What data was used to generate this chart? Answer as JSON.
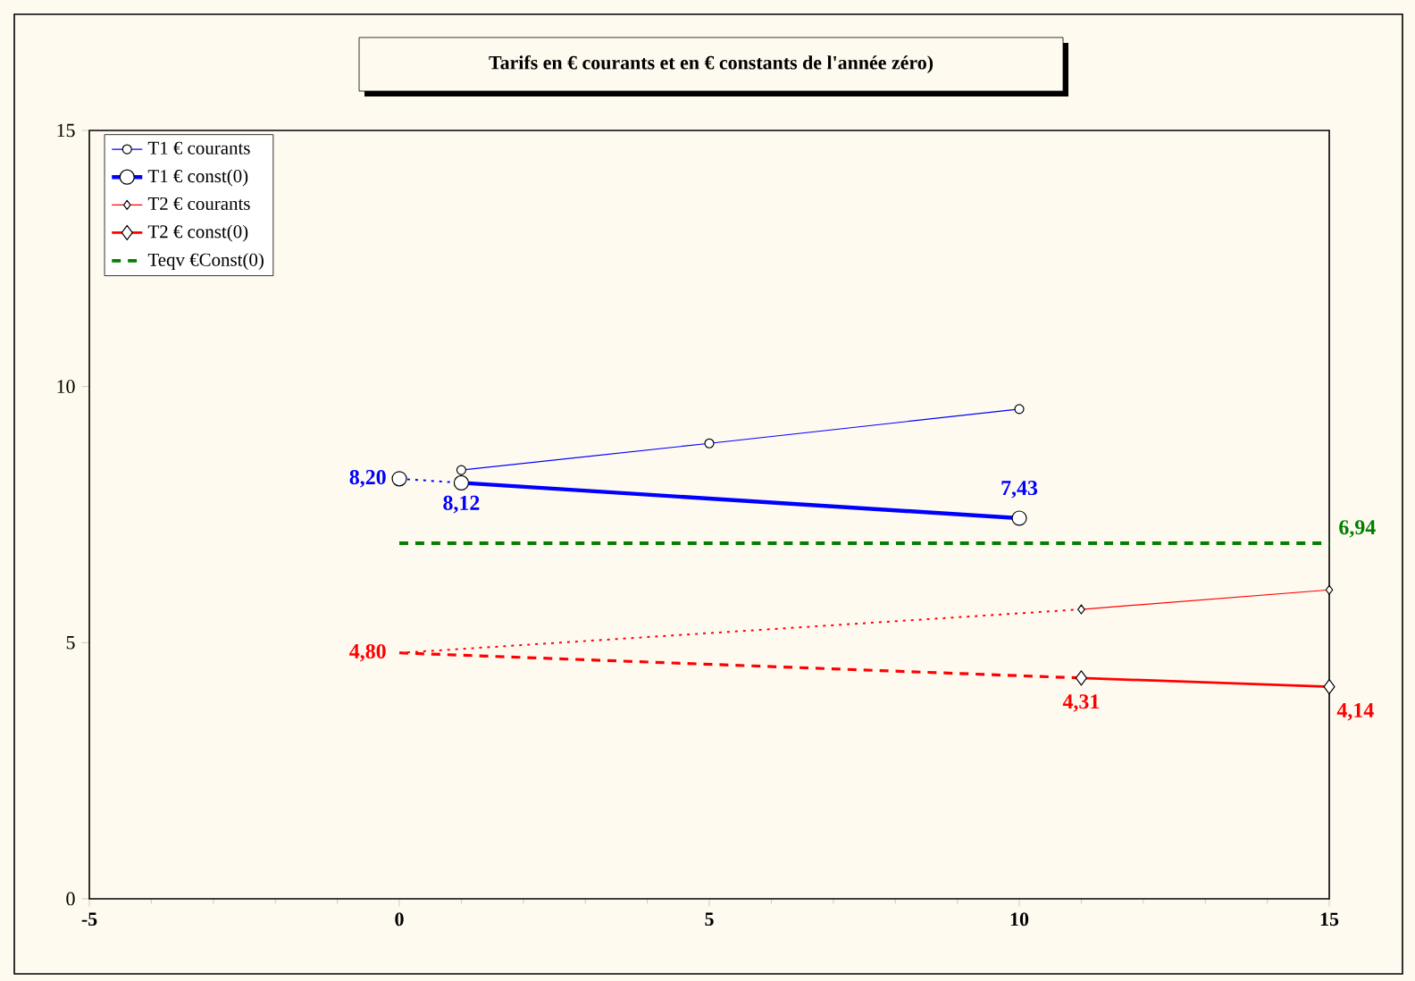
{
  "chart_data": {
    "type": "line",
    "title": "Tarifs en € courants et en € constants de l'année zéro)",
    "xlim": [
      -5,
      15
    ],
    "ylim": [
      0,
      15
    ],
    "xticks": [
      -5,
      0,
      5,
      10,
      15
    ],
    "yticks": [
      0,
      5,
      10,
      15
    ],
    "grid": false,
    "legend": "top left",
    "series": [
      {
        "name": "T1 € courants",
        "color": "#0000ff",
        "x": [
          1,
          5,
          10
        ],
        "values": [
          8.37,
          8.89,
          9.56
        ],
        "marker": "circle",
        "line_style": "solid"
      },
      {
        "name": "T1 € const(0)",
        "color": "#0000ff",
        "x": [
          1,
          10
        ],
        "values": [
          8.12,
          7.43
        ],
        "marker": "circle",
        "line_style": "solid",
        "value_labels": [
          "8,12",
          "7,43"
        ]
      },
      {
        "name": "T2 € courants",
        "color": "#ff0000",
        "x": [
          11,
          15
        ],
        "values": [
          5.65,
          6.03
        ],
        "marker": "diamond",
        "line_style": "solid"
      },
      {
        "name": "T2 € const(0)",
        "color": "#ff0000",
        "x": [
          11,
          15
        ],
        "values": [
          4.31,
          4.14
        ],
        "marker": "diamond",
        "line_style": "solid",
        "value_labels": [
          "4,31",
          "4,14"
        ]
      },
      {
        "name": "Teqv €Const(0)",
        "color": "#008000",
        "x": [
          0,
          15
        ],
        "values": [
          6.94,
          6.94
        ],
        "marker": "none",
        "line_style": "dashed",
        "value_labels": [
          null,
          "6,94"
        ]
      },
      {
        "color": "#0000ff",
        "x": [
          0,
          1
        ],
        "values": [
          8.2,
          8.12
        ],
        "marker": "circle",
        "line_style": "dotted",
        "value_labels": [
          "8,20",
          null
        ]
      },
      {
        "color": "#ff0000",
        "x": [
          0,
          11
        ],
        "values": [
          4.8,
          5.65
        ],
        "marker": "none",
        "line_style": "dotted",
        "value_labels": [
          "4,80",
          null
        ]
      },
      {
        "color": "#ff0000",
        "x": [
          0,
          11
        ],
        "values": [
          4.8,
          4.31
        ],
        "marker": "none",
        "line_style": "dashed"
      }
    ]
  }
}
